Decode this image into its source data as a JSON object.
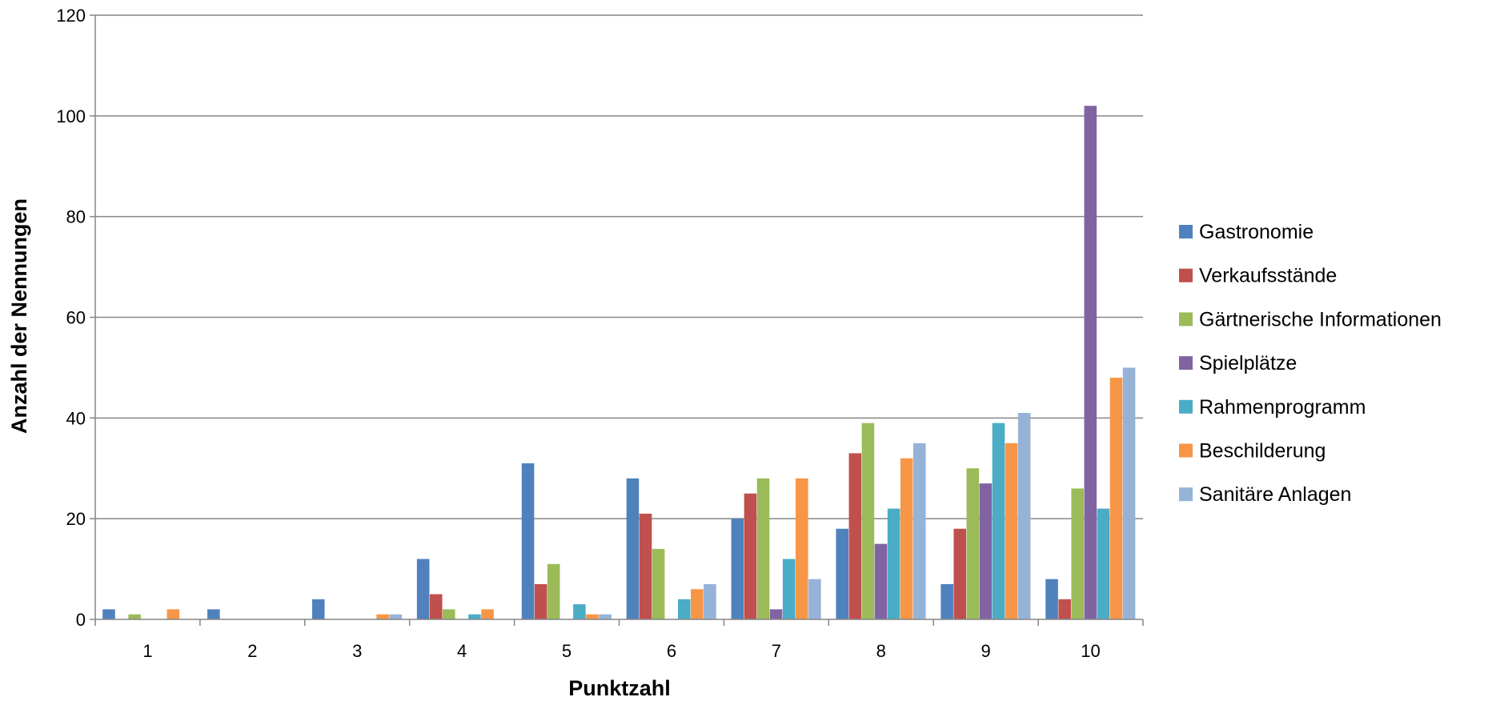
{
  "chart_data": {
    "type": "bar",
    "title": "",
    "xlabel": "Punktzahl",
    "ylabel": "Anzahl der Nennungen",
    "categories": [
      "1",
      "2",
      "3",
      "4",
      "5",
      "6",
      "7",
      "8",
      "9",
      "10"
    ],
    "ylim": [
      0,
      120
    ],
    "yticks": [
      "0",
      "20",
      "40",
      "60",
      "80",
      "100",
      "120"
    ],
    "grid": true,
    "legend_position": "right",
    "series": [
      {
        "name": "Gastronomie",
        "color": "#4F81BD",
        "values": [
          2,
          2,
          4,
          12,
          31,
          28,
          20,
          18,
          7,
          8
        ]
      },
      {
        "name": "Verkaufsstände",
        "color": "#C0504D",
        "values": [
          0,
          0,
          0,
          5,
          7,
          21,
          25,
          33,
          18,
          4
        ]
      },
      {
        "name": "Gärtnerische Informationen",
        "color": "#9BBB59",
        "values": [
          1,
          0,
          0,
          2,
          11,
          14,
          28,
          39,
          30,
          26
        ]
      },
      {
        "name": "Spielplätze",
        "color": "#8064A2",
        "values": [
          0,
          0,
          0,
          0,
          0,
          0,
          2,
          15,
          27,
          102
        ]
      },
      {
        "name": "Rahmenprogramm",
        "color": "#4BACC6",
        "values": [
          0,
          0,
          0,
          1,
          3,
          4,
          12,
          22,
          39,
          22
        ]
      },
      {
        "name": "Beschilderung",
        "color": "#F79646",
        "values": [
          2,
          0,
          1,
          2,
          1,
          6,
          28,
          32,
          35,
          48
        ]
      },
      {
        "name": "Sanitäre Anlagen",
        "color": "#95B3D7",
        "values": [
          0,
          0,
          1,
          0,
          1,
          7,
          8,
          35,
          41,
          50
        ]
      }
    ]
  }
}
